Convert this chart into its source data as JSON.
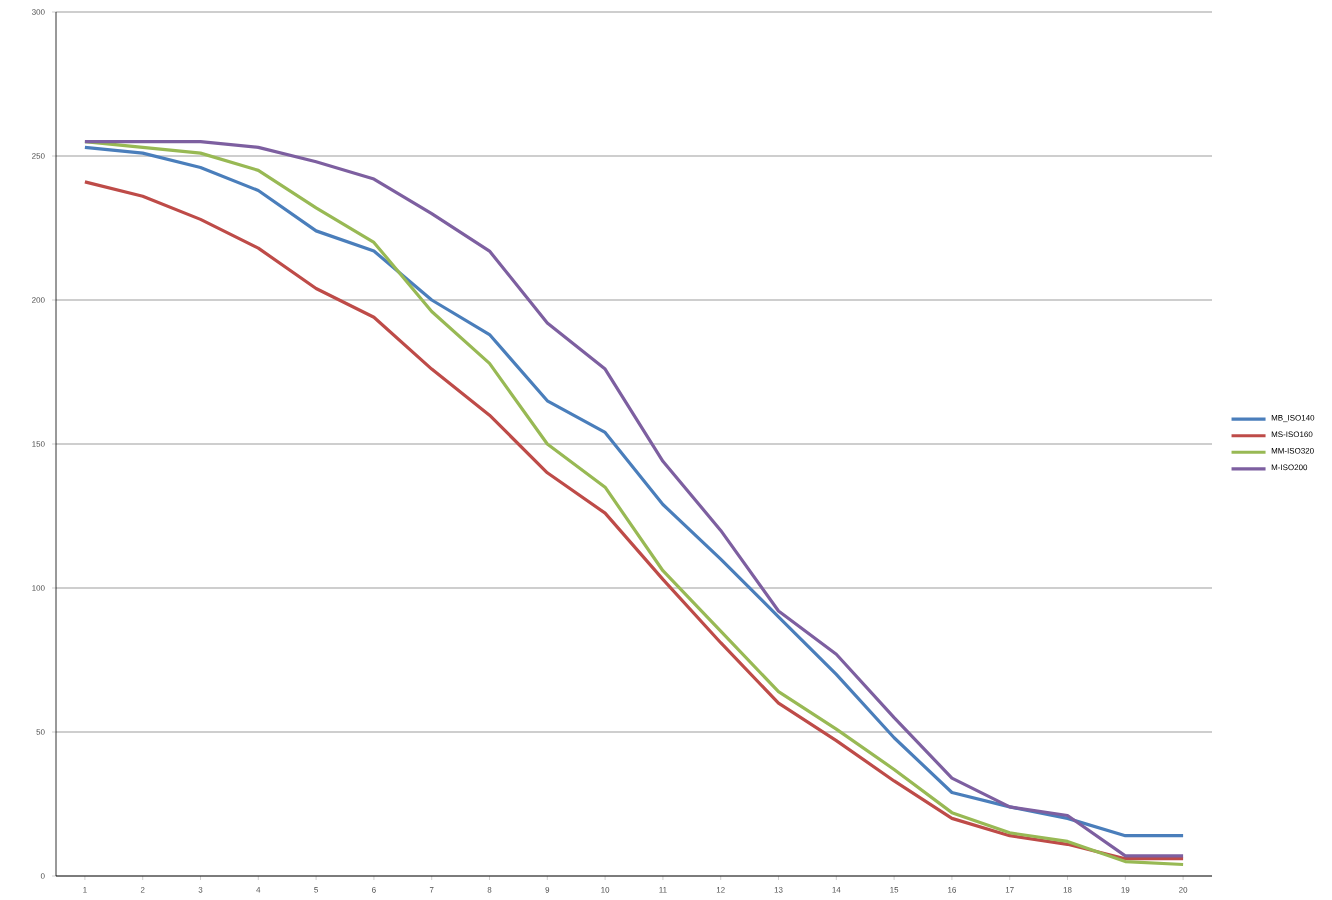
{
  "chart_data": {
    "type": "line",
    "categories": [
      "1",
      "2",
      "3",
      "4",
      "5",
      "6",
      "7",
      "8",
      "9",
      "10",
      "11",
      "12",
      "13",
      "14",
      "15",
      "16",
      "17",
      "18",
      "19",
      "20"
    ],
    "series": [
      {
        "name": "MB_ISO140",
        "color": "#4a7ebb",
        "values": [
          253,
          251,
          246,
          238,
          224,
          217,
          200,
          188,
          165,
          154,
          129,
          110,
          90,
          70,
          48,
          29,
          24,
          20,
          14,
          14
        ]
      },
      {
        "name": "MS-ISO160",
        "color": "#be4b48",
        "values": [
          241,
          236,
          228,
          218,
          204,
          194,
          176,
          160,
          140,
          126,
          103,
          81,
          60,
          47,
          33,
          20,
          14,
          11,
          6,
          6
        ]
      },
      {
        "name": "MM-ISO320",
        "color": "#98b954",
        "values": [
          255,
          253,
          251,
          245,
          232,
          220,
          196,
          178,
          150,
          135,
          106,
          85,
          64,
          51,
          37,
          22,
          15,
          12,
          5,
          4
        ]
      },
      {
        "name": "M-ISO200",
        "color": "#7d5fa0",
        "values": [
          255,
          255,
          255,
          253,
          248,
          242,
          230,
          217,
          192,
          176,
          144,
          120,
          92,
          77,
          55,
          34,
          24,
          21,
          7,
          7
        ]
      }
    ],
    "ylim": [
      0,
      300
    ],
    "yticks": [
      0,
      50,
      100,
      150,
      200,
      250,
      300
    ],
    "grid": "y",
    "legend": "right",
    "marker": "none",
    "line_style": "solid"
  }
}
